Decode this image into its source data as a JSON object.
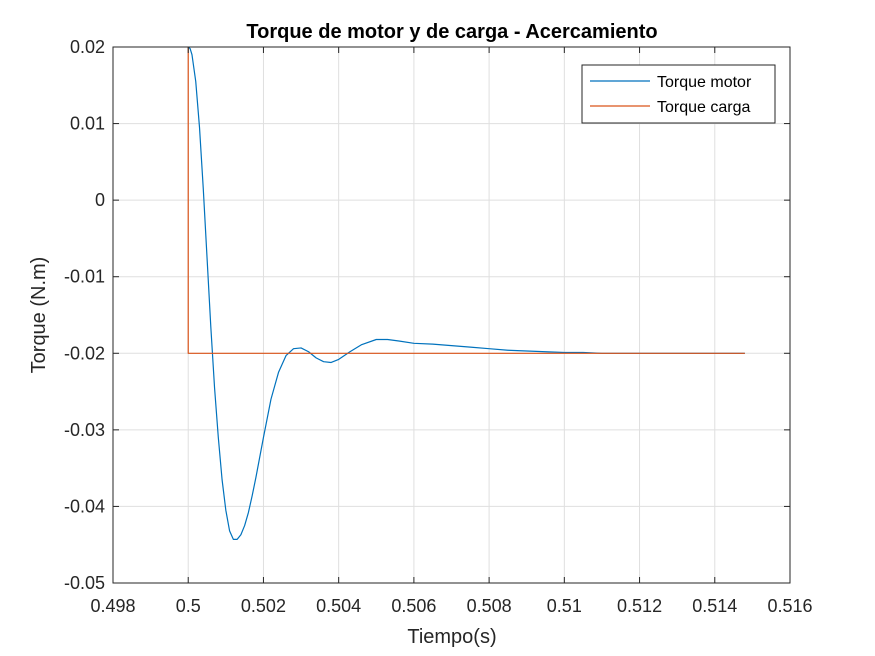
{
  "chart_data": {
    "type": "line",
    "title": "Torque de motor y de carga - Acercamiento",
    "xlabel": "Tiempo(s)",
    "ylabel": "Torque (N.m)",
    "xlim": [
      0.498,
      0.516
    ],
    "ylim": [
      -0.05,
      0.02
    ],
    "xticks": [
      0.498,
      0.5,
      0.502,
      0.504,
      0.506,
      0.508,
      0.51,
      0.512,
      0.514,
      0.516
    ],
    "xtick_labels": [
      "0.498",
      "0.5",
      "0.502",
      "0.504",
      "0.506",
      "0.508",
      "0.51",
      "0.512",
      "0.514",
      "0.516"
    ],
    "yticks": [
      0.02,
      0.01,
      0,
      -0.01,
      -0.02,
      -0.03,
      -0.04,
      -0.05
    ],
    "ytick_labels": [
      "0.02",
      "0.01",
      "0",
      "-0.01",
      "-0.02",
      "-0.03",
      "-0.04",
      "-0.05"
    ],
    "grid": true,
    "legend_position": "top-right",
    "series": [
      {
        "name": "Torque motor",
        "color": "#0072BD",
        "x": [
          0.5,
          0.50005,
          0.5001,
          0.5002,
          0.5003,
          0.5004,
          0.5005,
          0.5006,
          0.5007,
          0.5008,
          0.5009,
          0.501,
          0.5011,
          0.5012,
          0.5013,
          0.5014,
          0.5015,
          0.5016,
          0.5017,
          0.5018,
          0.502,
          0.5022,
          0.5024,
          0.5026,
          0.5028,
          0.503,
          0.5032,
          0.5034,
          0.5036,
          0.5038,
          0.504,
          0.5043,
          0.5046,
          0.505,
          0.5053,
          0.5056,
          0.506,
          0.5065,
          0.507,
          0.5075,
          0.508,
          0.5085,
          0.509,
          0.5095,
          0.51,
          0.5105,
          0.511,
          0.5115,
          0.512,
          0.5125,
          0.513,
          0.5135,
          0.514,
          0.5148
        ],
        "y": [
          0.02,
          0.0198,
          0.019,
          0.0155,
          0.0095,
          0.0015,
          -0.0075,
          -0.0165,
          -0.0245,
          -0.031,
          -0.0365,
          -0.0405,
          -0.0432,
          -0.0443,
          -0.0443,
          -0.0437,
          -0.0425,
          -0.0408,
          -0.0386,
          -0.0362,
          -0.031,
          -0.026,
          -0.0225,
          -0.0203,
          -0.0194,
          -0.0193,
          -0.0198,
          -0.0206,
          -0.0211,
          -0.0212,
          -0.0208,
          -0.0198,
          -0.0189,
          -0.0182,
          -0.0182,
          -0.0184,
          -0.0187,
          -0.0188,
          -0.019,
          -0.0192,
          -0.0194,
          -0.0196,
          -0.0197,
          -0.0198,
          -0.0199,
          -0.0199,
          -0.02,
          -0.02,
          -0.02,
          -0.02,
          -0.02,
          -0.02,
          -0.02,
          -0.02
        ]
      },
      {
        "name": "Torque carga",
        "color": "#D95319",
        "x": [
          0.5,
          0.5,
          0.5148
        ],
        "y": [
          0.02,
          -0.02,
          -0.02
        ]
      }
    ]
  }
}
